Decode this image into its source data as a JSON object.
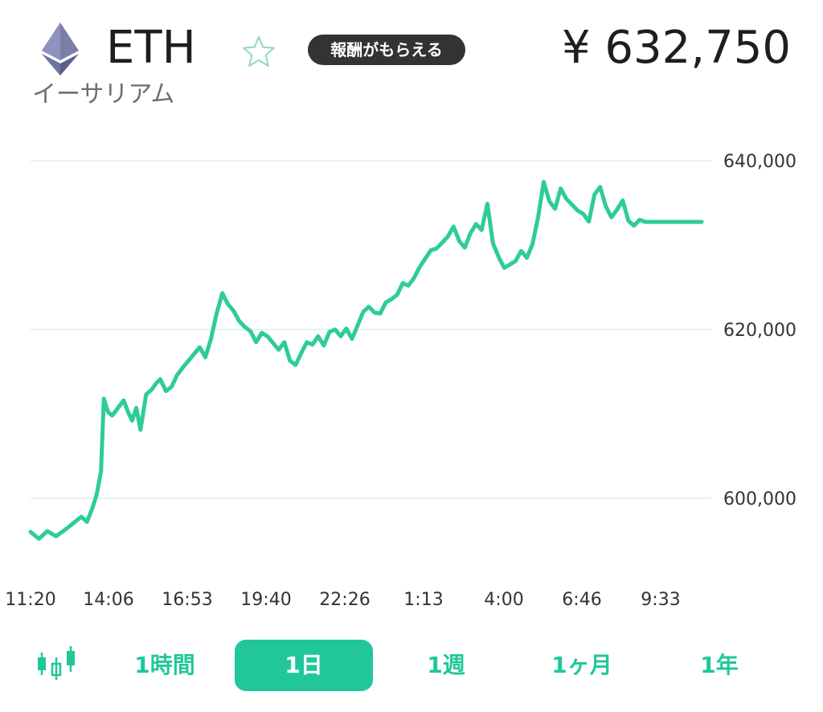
{
  "header": {
    "symbol": "ETH",
    "name_jp": "イーサリアム",
    "reward_badge": "報酬がもらえる",
    "price": "¥ 632,750",
    "logo_icon": "ethereum-logo-icon",
    "favorite_icon": "star-outline-icon"
  },
  "colors": {
    "accent": "#21c79a",
    "line": "#2ecc9a",
    "gridline": "#d9f2ec",
    "badge_bg": "#333333",
    "logo_top": "#7b7fa8",
    "logo_bottom": "#5b5f86"
  },
  "chart_data": {
    "type": "line",
    "title": "",
    "xlabel": "",
    "ylabel": "",
    "x_tick_labels": [
      "11:20",
      "14:06",
      "16:53",
      "19:40",
      "22:26",
      "1:13",
      "4:00",
      "6:46",
      "9:33"
    ],
    "y_tick_values": [
      600000,
      620000,
      640000
    ],
    "y_tick_labels": [
      "600,000",
      "620,000",
      "640,000"
    ],
    "ylim": [
      592000,
      641000
    ],
    "x_domain_hours": [
      0,
      24
    ],
    "grid": "horizontal",
    "series": [
      {
        "x": [
          0,
          0.3,
          0.6,
          0.9,
          1.2,
          1.5,
          1.8,
          2.0,
          2.2,
          2.35,
          2.5,
          2.6,
          2.75,
          2.9,
          3.1,
          3.3,
          3.45,
          3.6,
          3.75,
          3.9,
          4.1,
          4.3,
          4.45,
          4.6,
          4.8,
          5.0,
          5.2,
          5.4,
          5.6,
          5.8,
          6.0,
          6.2,
          6.4,
          6.6,
          6.8,
          7.0,
          7.2,
          7.4,
          7.6,
          7.8,
          8.0,
          8.2,
          8.4,
          8.6,
          8.8,
          9.0,
          9.2,
          9.4,
          9.6,
          9.8,
          10.0,
          10.2,
          10.4,
          10.6,
          10.8,
          11.0,
          11.2,
          11.4,
          11.6,
          11.8,
          12.0,
          12.2,
          12.4,
          12.6,
          12.8,
          13.0,
          13.2,
          13.4,
          13.6,
          13.8,
          14.0,
          14.2,
          14.4,
          14.6,
          14.8,
          15.0,
          15.2,
          15.4,
          15.6,
          15.8,
          16.0,
          16.2,
          16.4,
          16.6,
          16.8,
          17.0,
          17.2,
          17.4,
          17.6,
          17.8,
          18.0,
          18.2,
          18.4,
          18.6,
          18.8,
          19.0,
          19.2,
          19.4,
          19.6,
          19.8,
          20.0,
          20.2,
          20.4,
          20.6,
          20.8,
          21.0,
          21.2,
          21.4,
          21.6,
          21.8,
          22.0,
          22.2,
          22.4,
          22.6,
          22.8,
          23.0,
          23.2,
          23.4,
          23.6,
          23.8
        ],
        "values": [
          596000,
          595200,
          596100,
          595500,
          596200,
          597000,
          597800,
          597200,
          598900,
          600500,
          603200,
          611800,
          610200,
          609800,
          610700,
          611600,
          610300,
          609200,
          610700,
          608100,
          612300,
          612900,
          613600,
          614100,
          612700,
          613200,
          614600,
          615500,
          616300,
          617100,
          617900,
          616700,
          618900,
          621900,
          624300,
          623000,
          622200,
          621000,
          620300,
          619800,
          618500,
          619600,
          619200,
          618400,
          617600,
          618500,
          616300,
          615800,
          617200,
          618500,
          618200,
          619200,
          618100,
          619700,
          620000,
          619200,
          620100,
          618900,
          620500,
          622100,
          622700,
          622000,
          621900,
          623200,
          623600,
          624100,
          625500,
          625200,
          626100,
          627400,
          628400,
          629400,
          629600,
          630300,
          631000,
          632200,
          630500,
          629700,
          631400,
          632500,
          631800,
          634900,
          630200,
          628600,
          627300,
          627700,
          628100,
          629300,
          628500,
          630100,
          633300,
          637500,
          635200,
          634300,
          636700,
          635500,
          634800,
          634100,
          633700,
          632800,
          636000,
          636900,
          634600,
          633300,
          634200,
          635300,
          632900,
          632300,
          633000,
          632750,
          632750,
          632750,
          632750,
          632750,
          632750,
          632750,
          632750,
          632750,
          632750,
          632750
        ]
      }
    ]
  },
  "tabs": {
    "candle_icon": "candlestick-icon",
    "items": [
      {
        "label": "1時間",
        "active": false
      },
      {
        "label": "1日",
        "active": true
      },
      {
        "label": "1週",
        "active": false
      },
      {
        "label": "1ヶ月",
        "active": false
      },
      {
        "label": "1年",
        "active": false
      }
    ]
  }
}
